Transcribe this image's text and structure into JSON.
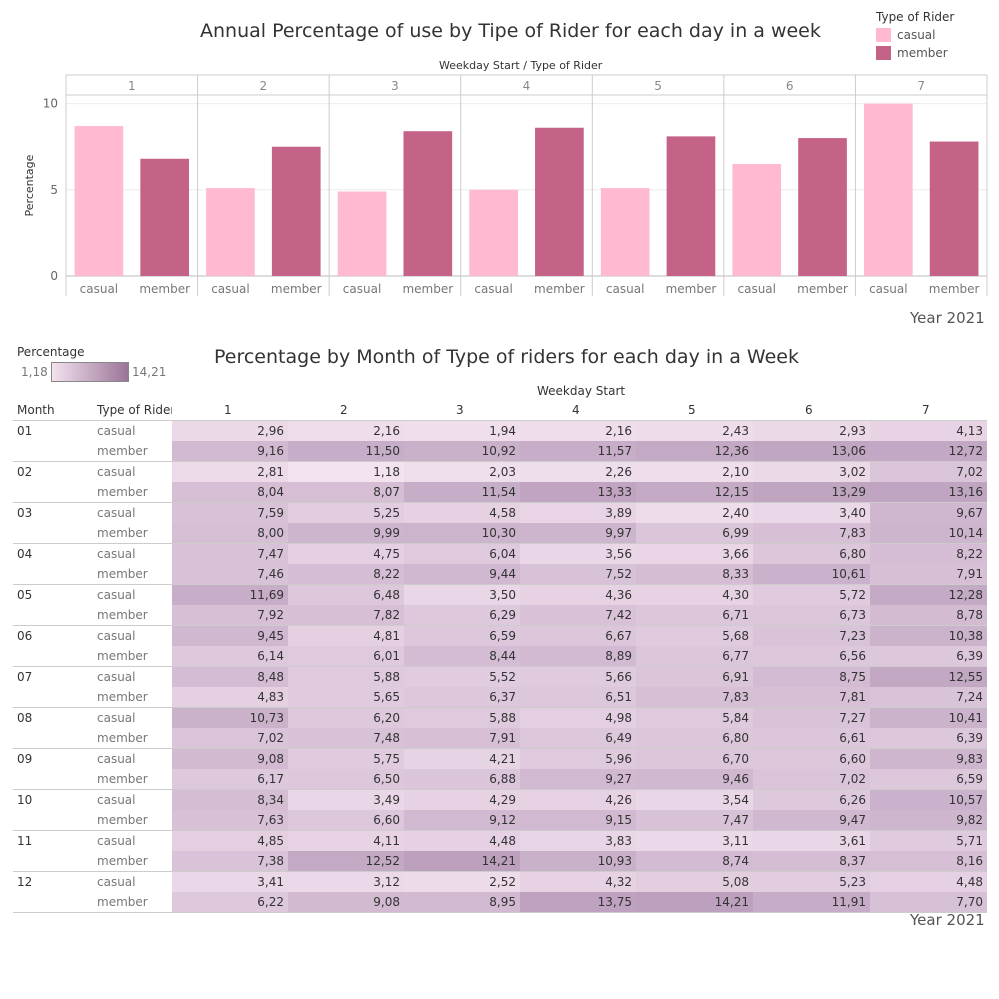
{
  "bar_chart": {
    "title": "Annual Percentage of use by Tipe of Rider for each day in a week",
    "header": "Weekday Start  /  Type of Rider",
    "y_label": "Percentage",
    "footer": "Year 2021"
  },
  "legend": {
    "title": "Type of Rider",
    "items": [
      {
        "label": "casual",
        "color": "#ffbad2"
      },
      {
        "label": "member",
        "color": "#c46287"
      }
    ]
  },
  "heatmap": {
    "title": "Percentage by Month of Type of riders for each day in a Week",
    "header": "Weekday Start",
    "col_month": "Month",
    "col_type": "Type of Rider",
    "footer": "Year 2021",
    "legend_title": "Percentage",
    "legend_min": "1,18",
    "legend_max": "14,21"
  },
  "chart_data": [
    {
      "type": "bar",
      "title": "Annual Percentage of use by Tipe of Rider for each day in a week",
      "ylabel": "Percentage",
      "ylim": [
        0,
        10.5
      ],
      "yticks": [
        0,
        5,
        10
      ],
      "categories": [
        "1",
        "2",
        "3",
        "4",
        "5",
        "6",
        "7"
      ],
      "sub_categories": [
        "casual",
        "member"
      ],
      "series": [
        {
          "name": "casual",
          "values": [
            8.7,
            5.1,
            4.9,
            5.0,
            5.1,
            6.5,
            10.0
          ]
        },
        {
          "name": "member",
          "values": [
            6.8,
            7.5,
            8.4,
            8.6,
            8.1,
            8.0,
            7.8
          ]
        }
      ],
      "grid": true
    },
    {
      "type": "heatmap",
      "title": "Percentage by Month of Type of riders for each day in a Week",
      "columns": [
        "1",
        "2",
        "3",
        "4",
        "5",
        "6",
        "7"
      ],
      "color_range": [
        1.18,
        14.21
      ],
      "rows": [
        {
          "month": "01",
          "type": "casual",
          "values": [
            "2,96",
            "2,16",
            "1,94",
            "2,16",
            "2,43",
            "2,93",
            "4,13"
          ]
        },
        {
          "month": "",
          "type": "member",
          "values": [
            "9,16",
            "11,50",
            "10,92",
            "11,57",
            "12,36",
            "13,06",
            "12,72"
          ]
        },
        {
          "month": "02",
          "type": "casual",
          "values": [
            "2,81",
            "1,18",
            "2,03",
            "2,26",
            "2,10",
            "3,02",
            "7,02"
          ]
        },
        {
          "month": "",
          "type": "member",
          "values": [
            "8,04",
            "8,07",
            "11,54",
            "13,33",
            "12,15",
            "13,29",
            "13,16"
          ]
        },
        {
          "month": "03",
          "type": "casual",
          "values": [
            "7,59",
            "5,25",
            "4,58",
            "3,89",
            "2,40",
            "3,40",
            "9,67"
          ]
        },
        {
          "month": "",
          "type": "member",
          "values": [
            "8,00",
            "9,99",
            "10,30",
            "9,97",
            "6,99",
            "7,83",
            "10,14"
          ]
        },
        {
          "month": "04",
          "type": "casual",
          "values": [
            "7,47",
            "4,75",
            "6,04",
            "3,56",
            "3,66",
            "6,80",
            "8,22"
          ]
        },
        {
          "month": "",
          "type": "member",
          "values": [
            "7,46",
            "8,22",
            "9,44",
            "7,52",
            "8,33",
            "10,61",
            "7,91"
          ]
        },
        {
          "month": "05",
          "type": "casual",
          "values": [
            "11,69",
            "6,48",
            "3,50",
            "4,36",
            "4,30",
            "5,72",
            "12,28"
          ]
        },
        {
          "month": "",
          "type": "member",
          "values": [
            "7,92",
            "7,82",
            "6,29",
            "7,42",
            "6,71",
            "6,73",
            "8,78"
          ]
        },
        {
          "month": "06",
          "type": "casual",
          "values": [
            "9,45",
            "4,81",
            "6,59",
            "6,67",
            "5,68",
            "7,23",
            "10,38"
          ]
        },
        {
          "month": "",
          "type": "member",
          "values": [
            "6,14",
            "6,01",
            "8,44",
            "8,89",
            "6,77",
            "6,56",
            "6,39"
          ]
        },
        {
          "month": "07",
          "type": "casual",
          "values": [
            "8,48",
            "5,88",
            "5,52",
            "5,66",
            "6,91",
            "8,75",
            "12,55"
          ]
        },
        {
          "month": "",
          "type": "member",
          "values": [
            "4,83",
            "5,65",
            "6,37",
            "6,51",
            "7,83",
            "7,81",
            "7,24"
          ]
        },
        {
          "month": "08",
          "type": "casual",
          "values": [
            "10,73",
            "6,20",
            "5,88",
            "4,98",
            "5,84",
            "7,27",
            "10,41"
          ]
        },
        {
          "month": "",
          "type": "member",
          "values": [
            "7,02",
            "7,48",
            "7,91",
            "6,49",
            "6,80",
            "6,61",
            "6,39"
          ]
        },
        {
          "month": "09",
          "type": "casual",
          "values": [
            "9,08",
            "5,75",
            "4,21",
            "5,96",
            "6,70",
            "6,60",
            "9,83"
          ]
        },
        {
          "month": "",
          "type": "member",
          "values": [
            "6,17",
            "6,50",
            "6,88",
            "9,27",
            "9,46",
            "7,02",
            "6,59"
          ]
        },
        {
          "month": "10",
          "type": "casual",
          "values": [
            "8,34",
            "3,49",
            "4,29",
            "4,26",
            "3,54",
            "6,26",
            "10,57"
          ]
        },
        {
          "month": "",
          "type": "member",
          "values": [
            "7,63",
            "6,60",
            "9,12",
            "9,15",
            "7,47",
            "9,47",
            "9,82"
          ]
        },
        {
          "month": "11",
          "type": "casual",
          "values": [
            "4,85",
            "4,11",
            "4,48",
            "3,83",
            "3,11",
            "3,61",
            "5,71"
          ]
        },
        {
          "month": "",
          "type": "member",
          "values": [
            "7,38",
            "12,52",
            "14,21",
            "10,93",
            "8,74",
            "8,37",
            "8,16"
          ]
        },
        {
          "month": "12",
          "type": "casual",
          "values": [
            "3,41",
            "3,12",
            "2,52",
            "4,32",
            "5,08",
            "5,23",
            "4,48"
          ]
        },
        {
          "month": "",
          "type": "member",
          "values": [
            "6,22",
            "9,08",
            "8,95",
            "13,75",
            "14,21",
            "11,91",
            "7,70"
          ]
        }
      ]
    }
  ]
}
